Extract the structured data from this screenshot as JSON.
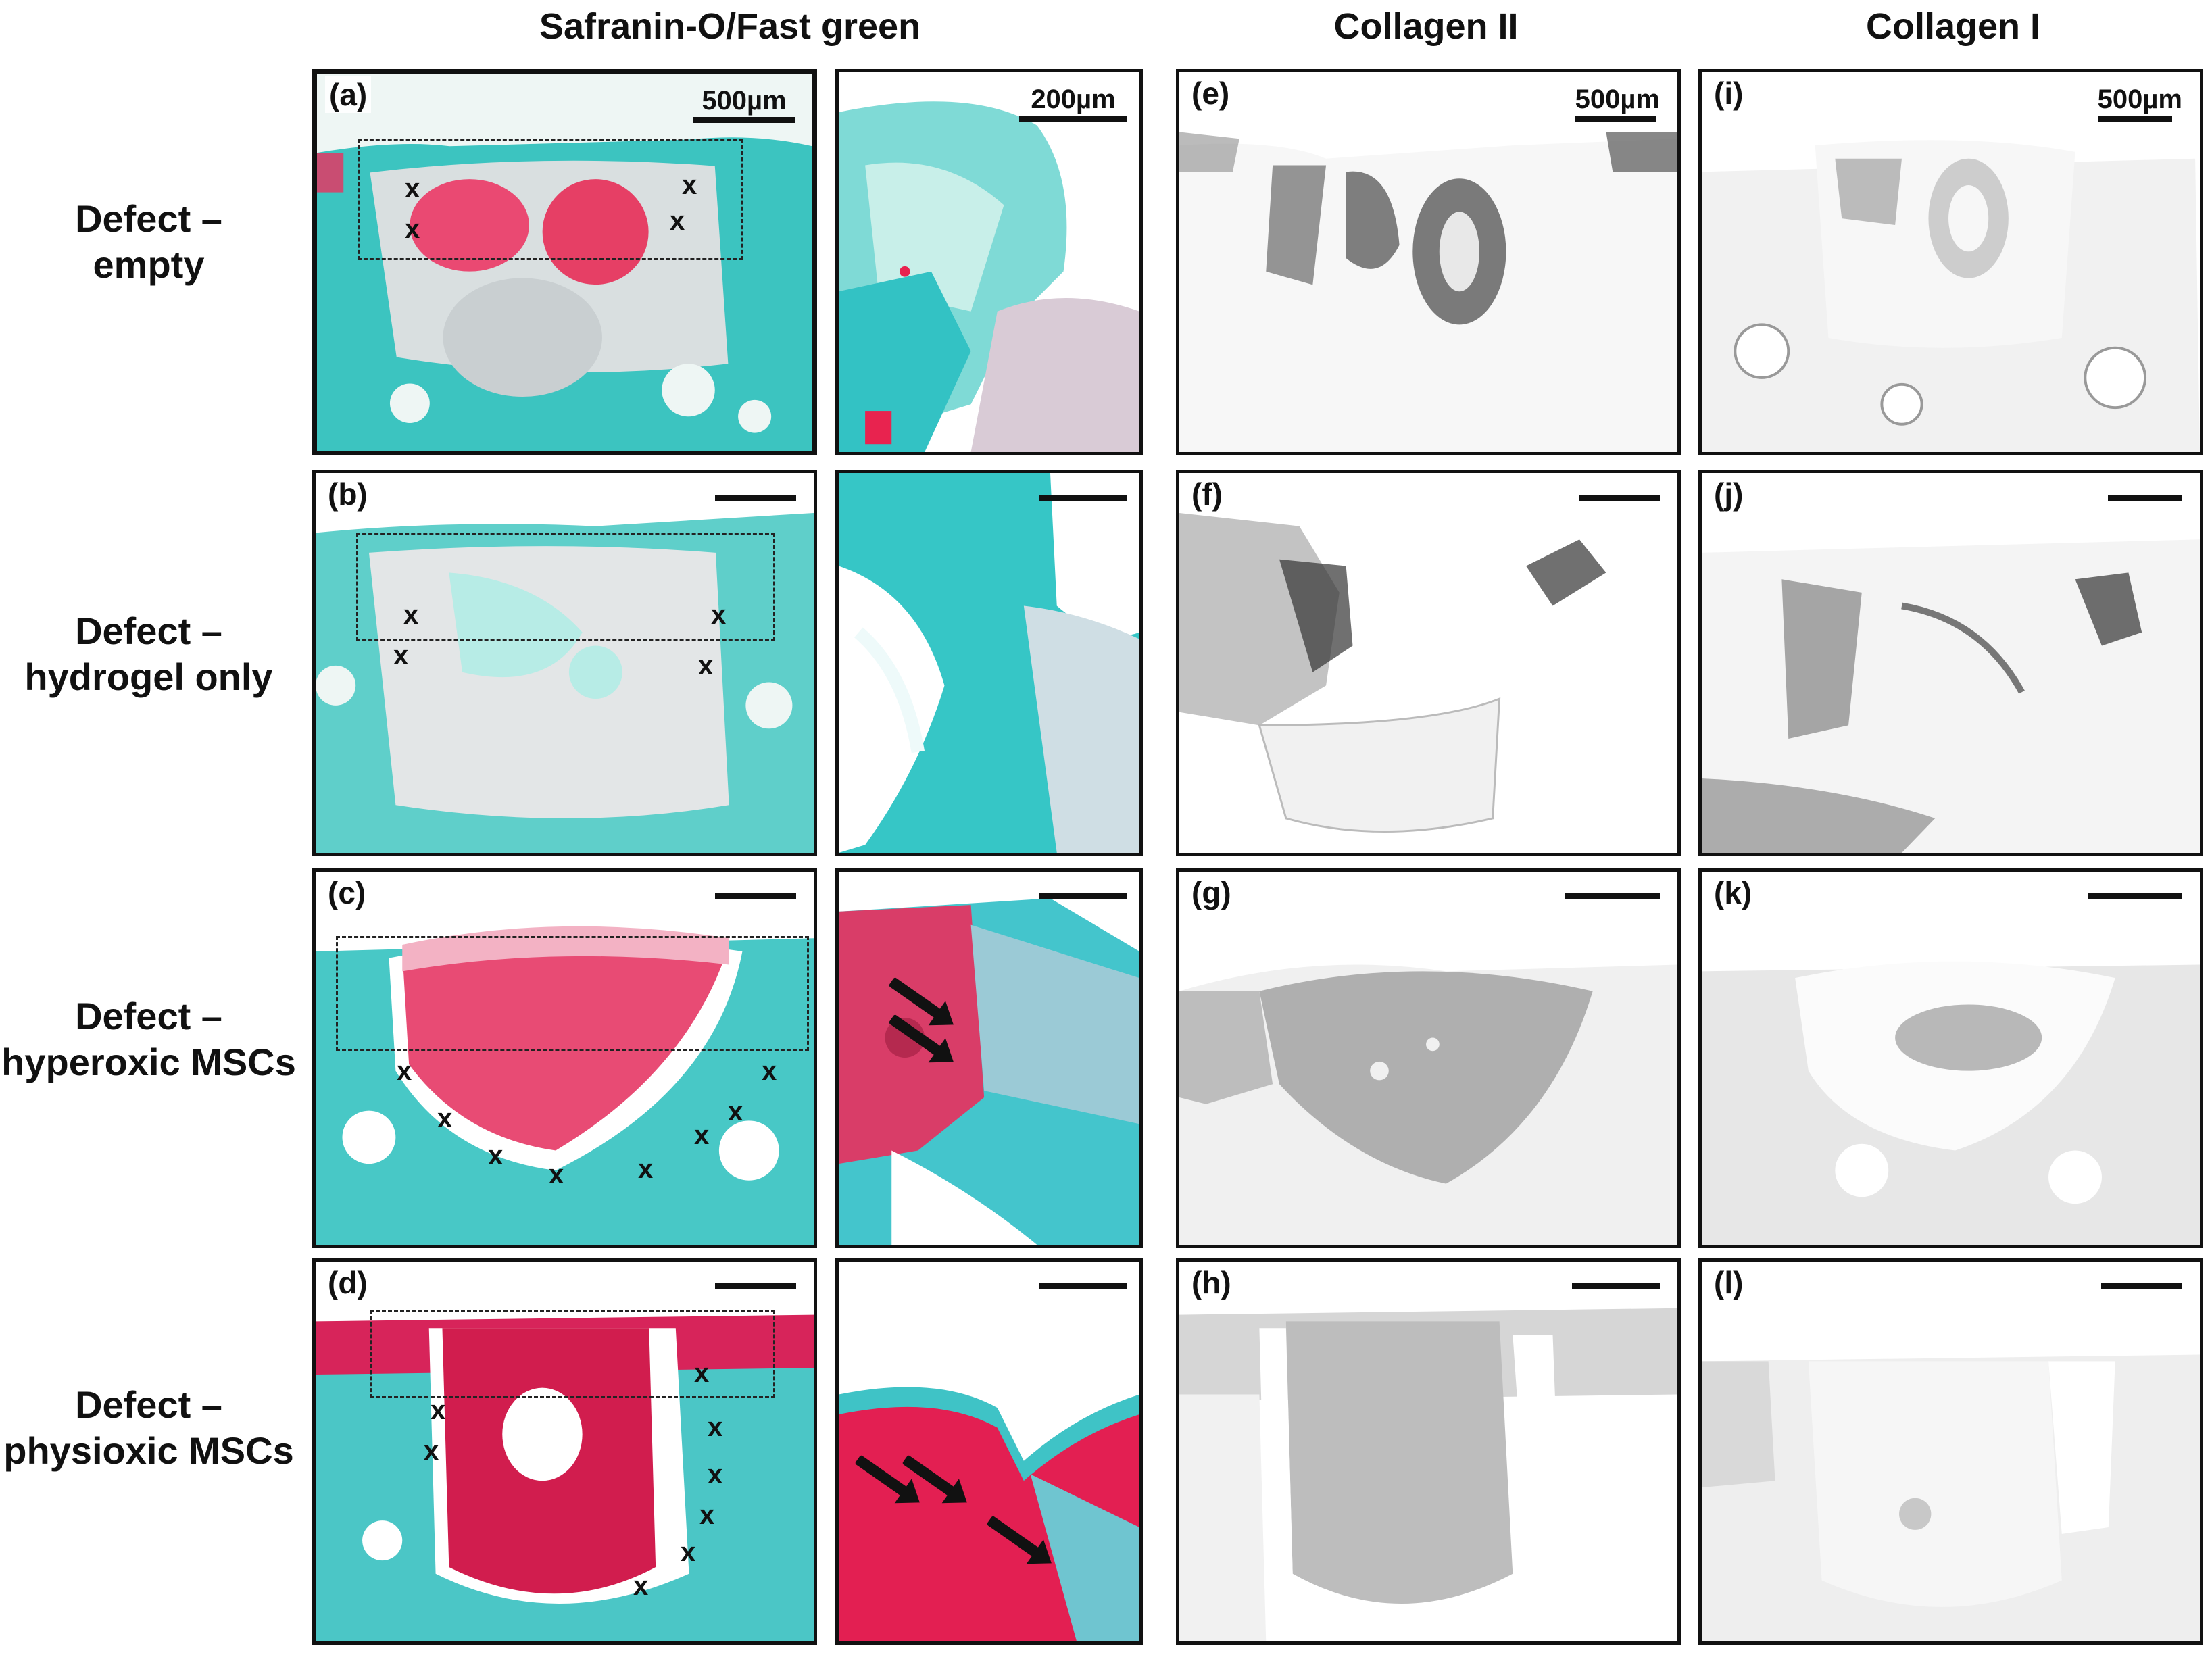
{
  "columns": {
    "safranin": "Safranin-O/Fast  green",
    "col2": "Collagen II",
    "col1": "Collagen I"
  },
  "rows": [
    {
      "line1": "Defect –",
      "line2": "empty"
    },
    {
      "line1": "Defect –",
      "line2": "hydrogel only"
    },
    {
      "line1": "Defect –",
      "line2": "hyperoxic MSCs"
    },
    {
      "line1": "Defect –",
      "line2": "physioxic MSCs"
    }
  ],
  "panels": {
    "a": "(a)",
    "b": "(b)",
    "c": "(c)",
    "d": "(d)",
    "e": "(e)",
    "f": "(f)",
    "g": "(g)",
    "h": "(h)",
    "i": "(i)",
    "j": "(j)",
    "k": "(k)",
    "l": "(l)"
  },
  "scale_bars": {
    "overview": "500µm",
    "zoom": "200µm"
  },
  "defect_marker": "x",
  "colors": {
    "safranin_red": "#e02a5a",
    "fast_green": "#2fc3c3",
    "background": "#ffffff",
    "ink": "#111111"
  }
}
